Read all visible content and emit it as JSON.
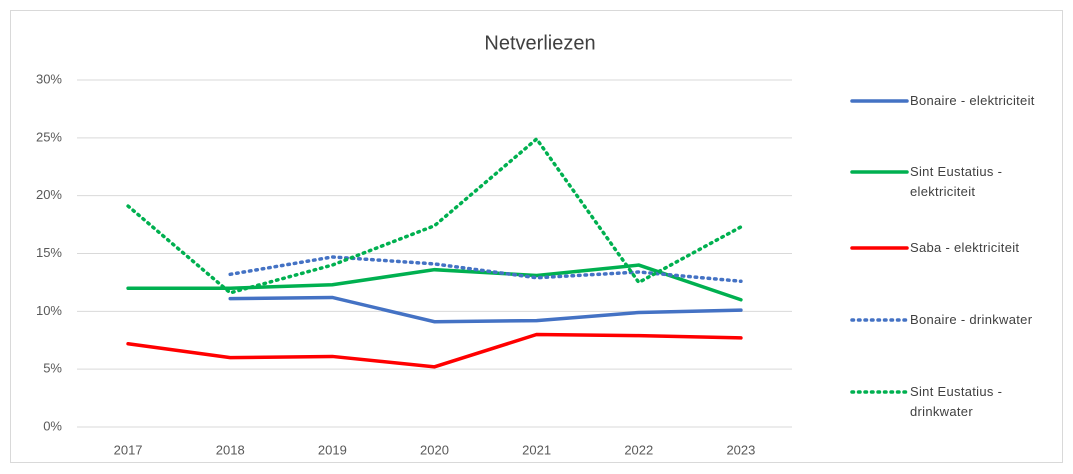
{
  "chart_data": {
    "type": "line",
    "title": "Netverliezen",
    "categories": [
      "2017",
      "2018",
      "2019",
      "2020",
      "2021",
      "2022",
      "2023"
    ],
    "series": [
      {
        "name": "Bonaire - elektriciteit",
        "color": "#4472c4",
        "style": "solid",
        "values": [
          null,
          11.1,
          11.2,
          9.1,
          9.2,
          9.9,
          10.1
        ]
      },
      {
        "name": "Sint Eustatius - elektriciteit",
        "color": "#00b050",
        "style": "solid",
        "values": [
          12.0,
          12.0,
          12.3,
          13.6,
          13.1,
          14.0,
          11.0
        ]
      },
      {
        "name": "Saba - elektriciteit",
        "color": "#ff0000",
        "style": "solid",
        "values": [
          7.2,
          6.0,
          6.1,
          5.2,
          8.0,
          7.9,
          7.7
        ]
      },
      {
        "name": "Bonaire - drinkwater",
        "color": "#4472c4",
        "style": "dotted",
        "values": [
          null,
          13.2,
          14.7,
          14.1,
          12.9,
          13.4,
          12.6
        ]
      },
      {
        "name": "Sint Eustatius - drinkwater",
        "color": "#00b050",
        "style": "dotted",
        "values": [
          19.1,
          11.6,
          14.0,
          17.4,
          24.9,
          12.5,
          17.3
        ]
      }
    ],
    "ylim": [
      0,
      30
    ],
    "yticks": [
      {
        "value": 0,
        "label": "0%"
      },
      {
        "value": 5,
        "label": "5%"
      },
      {
        "value": 10,
        "label": "10%"
      },
      {
        "value": 15,
        "label": "15%"
      },
      {
        "value": 20,
        "label": "20%"
      },
      {
        "value": 25,
        "label": "25%"
      },
      {
        "value": 30,
        "label": "30%"
      }
    ],
    "grid": true,
    "legend": "right"
  }
}
